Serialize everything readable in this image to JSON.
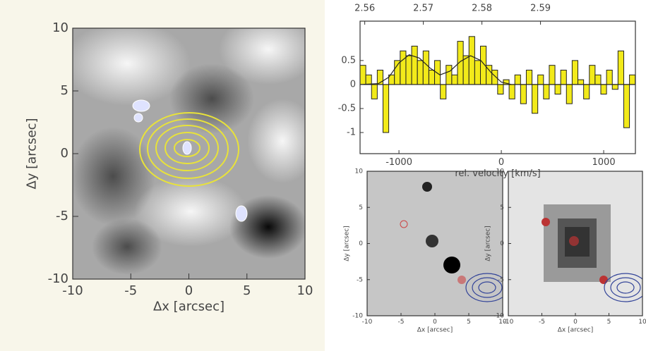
{
  "chart_data": [
    {
      "type": "image",
      "xlabel": "Δx [arcsec]",
      "ylabel": "Δy [arcsec]",
      "xlim": [
        -10,
        10
      ],
      "ylim": [
        -10,
        10
      ],
      "xticks": [
        -10,
        -5,
        0,
        5,
        10
      ],
      "yticks": [
        -10,
        -5,
        0,
        5,
        10
      ]
    },
    {
      "type": "histogram",
      "xlabel": "rel. velocity [km/s]",
      "color": "#f2ea1a",
      "bins": [
        -1380,
        -1324,
        -1268,
        -1212,
        -1156,
        -1100,
        -1044,
        -988,
        -932,
        -876,
        -820,
        -764,
        -708,
        -652,
        -596,
        -540,
        -484,
        -428,
        -372,
        -316,
        -260,
        -204,
        -148,
        -92,
        -36,
        20,
        76,
        132,
        188,
        244,
        300,
        356,
        412,
        468,
        524,
        580,
        636,
        692,
        748,
        804,
        860,
        916,
        972,
        1028,
        1084,
        1140,
        1196,
        1252,
        1308
      ],
      "values": [
        0.4,
        0.2,
        -0.3,
        0.3,
        -1.0,
        0.2,
        0.5,
        0.7,
        0.6,
        0.8,
        0.5,
        0.7,
        0.3,
        0.5,
        -0.3,
        0.4,
        0.2,
        0.9,
        0.6,
        1.0,
        0.5,
        0.8,
        0.4,
        0.3,
        -0.2,
        0.1,
        -0.3,
        0.2,
        -0.4,
        0.3,
        -0.6,
        0.2,
        -0.3,
        0.4,
        -0.2,
        0.3,
        -0.4,
        0.5,
        0.1,
        -0.3,
        0.4,
        0.2,
        -0.2,
        0.3,
        -0.1,
        0.7,
        -0.9,
        0.2
      ],
      "fit": {
        "x": [
          -1380,
          -1200,
          -1100,
          -1000,
          -900,
          -800,
          -700,
          -600,
          -500,
          -400,
          -300,
          -200,
          -100,
          0,
          100,
          300,
          1308
        ],
        "values": [
          0,
          0.02,
          0.15,
          0.45,
          0.62,
          0.55,
          0.35,
          0.2,
          0.28,
          0.48,
          0.6,
          0.5,
          0.25,
          0.05,
          0,
          0,
          0
        ]
      },
      "xlim": [
        -1380,
        1310
      ],
      "xticks": [
        -1000,
        0,
        1000
      ],
      "x2lim": [
        2.5592,
        2.6062
      ],
      "x2ticks": [
        2.56,
        2.57,
        2.58,
        2.59
      ],
      "ylim": [
        -1.44,
        1.32
      ],
      "yticks": [
        -1,
        -0.5,
        0,
        0.5
      ]
    },
    {
      "type": "image",
      "xlabel": "Δx [arcsec]",
      "ylabel": "Δy [arcsec]",
      "xlim": [
        -10,
        10
      ],
      "ylim": [
        -10,
        10
      ],
      "xticks": [
        -10,
        -5,
        0,
        5,
        10
      ],
      "yticks": [
        -10,
        -5,
        0,
        5,
        10
      ]
    },
    {
      "type": "image",
      "xlabel": "Δx [arcsec]",
      "ylabel": "Δy [arcsec]",
      "xlim": [
        -10,
        10
      ],
      "ylim": [
        -10,
        10
      ],
      "xticks": [
        -10,
        -5,
        0,
        5,
        10
      ],
      "yticks": [
        -10,
        -5,
        0,
        5,
        10
      ]
    }
  ]
}
